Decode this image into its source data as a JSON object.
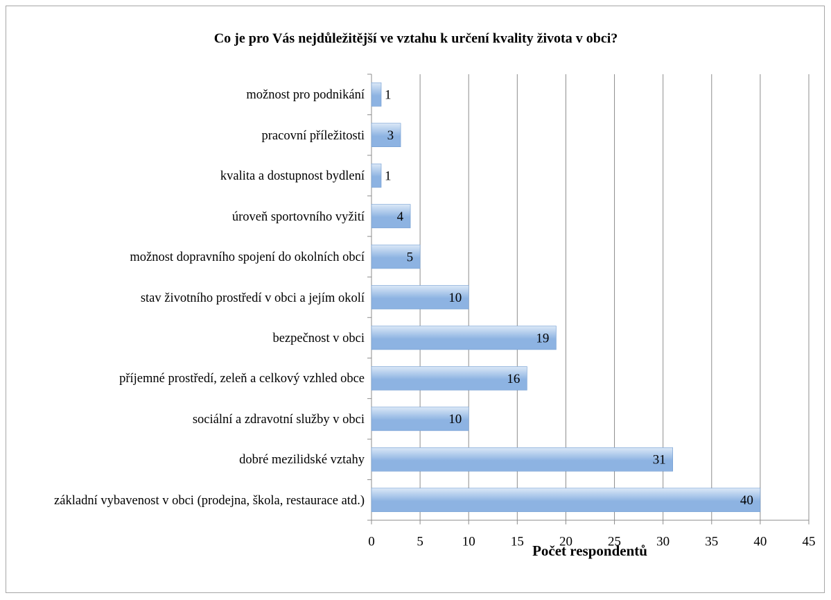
{
  "chart_data": {
    "type": "bar",
    "orientation": "horizontal",
    "title": "Co je pro Vás nejdůležitější ve vztahu k určení kvality života v obci?",
    "xlabel": "Počet respondentů",
    "categories": [
      "možnost pro podnikání",
      "pracovní příležitosti",
      "kvalita a dostupnost bydlení",
      "úroveň sportovního vyžití",
      "možnost dopravního spojení do okolních obcí",
      "stav životního prostředí v obci a jejím okolí",
      "bezpečnost v obci",
      "příjemné prostředí, zeleň a celkový vzhled obce",
      "sociální a zdravotní služby v obci",
      "dobré mezilidské vztahy",
      "základní vybavenost v obci (prodejna, škola, restaurace atd.)"
    ],
    "values": [
      1,
      3,
      1,
      4,
      5,
      10,
      19,
      16,
      10,
      31,
      40
    ],
    "color": "#8db3e2",
    "xlim": [
      0,
      45
    ],
    "xticks": [
      0,
      5,
      10,
      15,
      20,
      25,
      30,
      35,
      40,
      45
    ],
    "grid": true
  }
}
